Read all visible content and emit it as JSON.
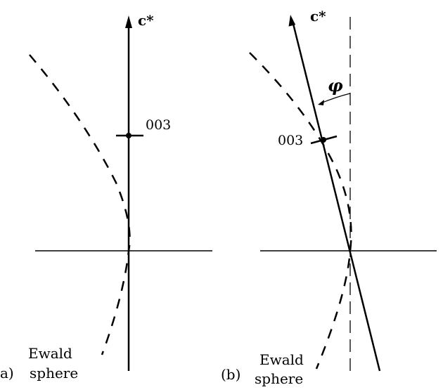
{
  "panel_a": {
    "caption": "a)",
    "axis_label": "c*",
    "reflection_label": "003",
    "ewald_label_line1": "Ewald",
    "ewald_label_line2": "sphere"
  },
  "panel_b": {
    "caption": "(b)",
    "axis_label": "c*",
    "reflection_label": "003",
    "angle_label": "φ",
    "ewald_label_line1": "Ewald",
    "ewald_label_line2": "sphere"
  }
}
